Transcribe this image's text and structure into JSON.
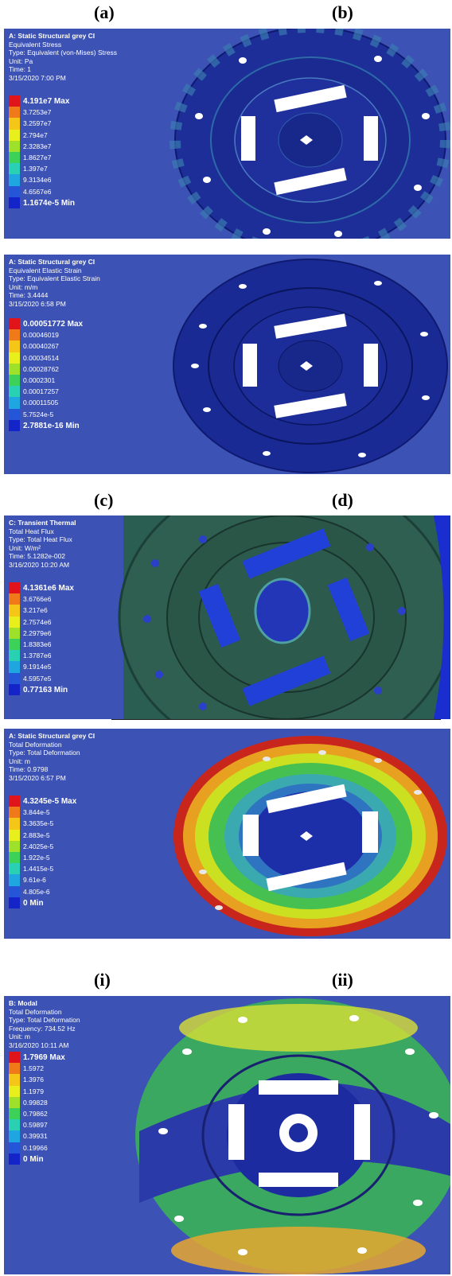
{
  "captions": {
    "a": "(a)",
    "b": "(b)",
    "c": "(c)",
    "d": "(d)",
    "i": "(i)",
    "ii": "(ii)"
  },
  "panels": [
    {
      "id": "p1",
      "title": "A: Static Structural grey CI",
      "lines": [
        "Equivalent Stress",
        "Type: Equivalent (von-Mises) Stress",
        "Unit: Pa",
        "Time: 1",
        "3/15/2020 7:00 PM"
      ],
      "legend": [
        "4.191e7 Max",
        "3.7253e7",
        "3.2597e7",
        "2.794e7",
        "2.3283e7",
        "1.8627e7",
        "1.397e7",
        "9.3134e6",
        "4.6567e6",
        "1.1674e-5 Min"
      ],
      "colors": {
        "background": "#3a4fb0",
        "disc": "#1c2d96"
      }
    },
    {
      "id": "p2",
      "title": "A: Static Structural grey CI",
      "lines": [
        "Equivalent Elastic Strain",
        "Type: Equivalent Elastic Strain",
        "Unit: m/m",
        "Time: 3.4444",
        "3/15/2020 6:58 PM"
      ],
      "legend": [
        "0.00051772 Max",
        "0.00046019",
        "0.00040267",
        "0.00034514",
        "0.00028762",
        "0.0002301",
        "0.00017257",
        "0.00011505",
        "5.7524e-5",
        "2.7881e-16 Min"
      ],
      "colors": {
        "background": "#3a4fb0",
        "disc": "#1a2a92"
      }
    },
    {
      "id": "p3",
      "title": "C: Transient Thermal",
      "lines": [
        "Total Heat Flux",
        "Type: Total Heat Flux",
        "Unit: W/m²",
        "Time: 5.1282e-002",
        "3/16/2020 10:20 AM"
      ],
      "legend": [
        "4.1361e6 Max",
        "3.6766e6",
        "3.217e6",
        "2.7574e6",
        "2.2979e6",
        "1.8383e6",
        "1.3787e6",
        "9.1914e5",
        "4.5957e5",
        "0.77163 Min"
      ],
      "colors": {
        "background": "#3a4fb0",
        "disc": "#2a5a4a"
      }
    },
    {
      "id": "p4",
      "title": "A: Static Structural grey CI",
      "lines": [
        "Total Deformation",
        "Type: Total Deformation",
        "Unit: m",
        "Time: 0.9798",
        "3/15/2020 6:57 PM"
      ],
      "legend": [
        "4.3245e-5 Max",
        "3.844e-5",
        "3.3635e-5",
        "2.883e-5",
        "2.4025e-5",
        "1.922e-5",
        "1.4415e-5",
        "9.61e-6",
        "4.805e-6",
        "0 Min"
      ],
      "colors": {
        "background": "#3a4fb0",
        "disc": "#3fa0a8"
      }
    },
    {
      "id": "p5",
      "title": "B: Modal",
      "lines": [
        "Total Deformation",
        "Type: Total Deformation",
        "Frequency: 734.52 Hz",
        "Unit: m",
        "3/16/2020 10:11 AM"
      ],
      "legend": [
        "1.7969 Max",
        "1.5972",
        "1.3976",
        "1.1979",
        "0.99828",
        "0.79862",
        "0.59897",
        "0.39931",
        "0.19966",
        "0 Min"
      ],
      "colors": {
        "background": "#3a4fb0",
        "disc": "#2233a8"
      }
    }
  ],
  "legend_colors": [
    "#e1141b",
    "#f07a1a",
    "#f5c518",
    "#e8ef1c",
    "#9ee02a",
    "#3ed15a",
    "#2ad0b4",
    "#1fa6e0",
    "#2656d8",
    "#1424c8"
  ]
}
